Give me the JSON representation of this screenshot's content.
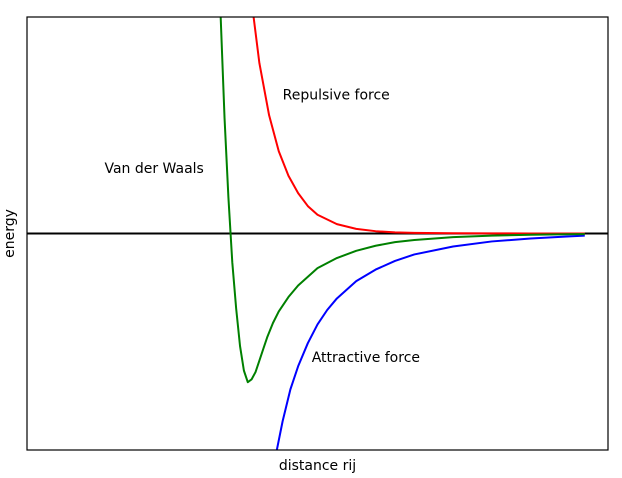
{
  "chart_data": {
    "type": "line",
    "xlabel": "distance rij",
    "ylabel": "energy",
    "xlim": [
      0.0,
      3.0
    ],
    "ylim": [
      -1.5,
      1.5
    ],
    "grid": false,
    "ticks_visible": false,
    "baseline_y": 0,
    "colors": {
      "repulsive": "#ff0000",
      "attractive": "#0000ff",
      "van_der_waals": "#008000",
      "baseline": "#000000"
    },
    "series": [
      {
        "key": "repulsive",
        "x": [
          1.17,
          1.2,
          1.25,
          1.3,
          1.35,
          1.4,
          1.45,
          1.5,
          1.6,
          1.7,
          1.8,
          1.9,
          2.0,
          2.2,
          2.4,
          2.6,
          2.8,
          2.88
        ],
        "y": [
          1.5,
          1.18,
          0.82,
          0.57,
          0.4,
          0.28,
          0.19,
          0.13,
          0.065,
          0.032,
          0.016,
          0.008,
          0.004,
          0.0015,
          0.0008,
          0.0004,
          0.0002,
          0.0001
        ]
      },
      {
        "key": "attractive",
        "x": [
          1.29,
          1.32,
          1.36,
          1.4,
          1.45,
          1.5,
          1.55,
          1.6,
          1.7,
          1.8,
          1.9,
          2.0,
          2.2,
          2.4,
          2.6,
          2.8,
          2.88
        ],
        "y": [
          -1.5,
          -1.3,
          -1.08,
          -0.92,
          -0.76,
          -0.63,
          -0.53,
          -0.45,
          -0.33,
          -0.25,
          -0.19,
          -0.145,
          -0.09,
          -0.055,
          -0.035,
          -0.02,
          -0.015
        ]
      },
      {
        "key": "van_der_waals",
        "x": [
          1.0,
          1.02,
          1.04,
          1.06,
          1.08,
          1.1,
          1.12,
          1.14,
          1.16,
          1.18,
          1.2,
          1.22,
          1.24,
          1.27,
          1.3,
          1.35,
          1.4,
          1.5,
          1.6,
          1.7,
          1.8,
          1.9,
          2.0,
          2.2,
          2.4,
          2.6,
          2.8,
          2.88
        ],
        "y": [
          1.5,
          0.8,
          0.25,
          -0.2,
          -0.52,
          -0.78,
          -0.95,
          -1.03,
          -1.01,
          -0.96,
          -0.88,
          -0.8,
          -0.72,
          -0.62,
          -0.54,
          -0.44,
          -0.36,
          -0.24,
          -0.17,
          -0.12,
          -0.085,
          -0.06,
          -0.045,
          -0.025,
          -0.015,
          -0.009,
          -0.005,
          -0.004
        ]
      }
    ],
    "annotations": [
      {
        "text": "Repulsive force",
        "x": 1.32,
        "y": 0.93
      },
      {
        "text": "Van der Waals",
        "x": 0.4,
        "y": 0.42
      },
      {
        "text": "Attractive force",
        "x": 1.47,
        "y": -0.89
      }
    ]
  }
}
